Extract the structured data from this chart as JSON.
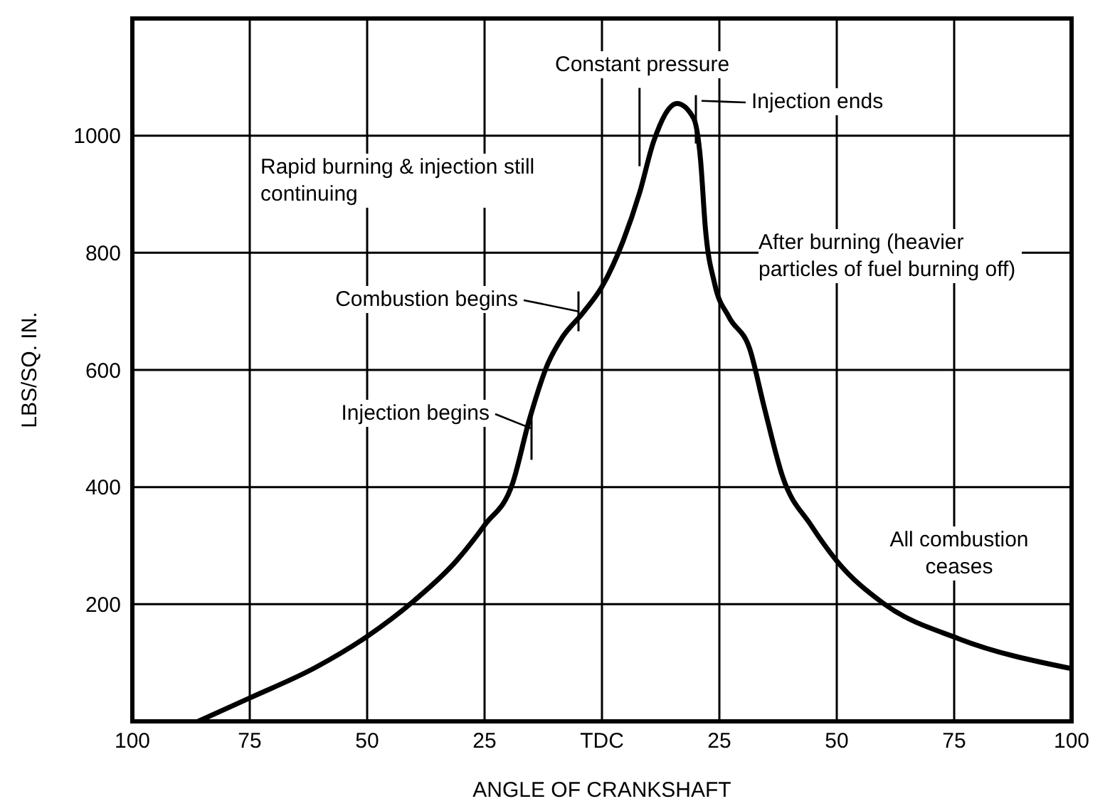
{
  "chart_data": {
    "type": "line",
    "xlabel": "ANGLE OF CRANKSHAFT",
    "ylabel": "LBS/SQ. IN.",
    "x": [
      -86,
      -75,
      -61,
      -50,
      -40,
      -31,
      -25,
      -19,
      -15.5,
      -11.5,
      -8.5,
      -4,
      0,
      4.5,
      8,
      11,
      16,
      19.5,
      21,
      22,
      24,
      27,
      31.5,
      34.5,
      38.5,
      44.5,
      50,
      60,
      76,
      100
    ],
    "series": [
      {
        "color": "#000000",
        "values": [
          0,
          40,
          92,
          145,
          206,
          274,
          335,
          407,
          514,
          611,
          655,
          698,
          742,
          820,
          902,
          990,
          1055,
          1030,
          958,
          844,
          747,
          691,
          635,
          538,
          417,
          335,
          274,
          201,
          141,
          90
        ]
      }
    ],
    "xlim": [
      -100,
      100
    ],
    "xticks": [
      {
        "value": -100,
        "label": "100"
      },
      {
        "value": -75,
        "label": "75"
      },
      {
        "value": -50,
        "label": "50"
      },
      {
        "value": -25,
        "label": "25"
      },
      {
        "value": 0,
        "label": "TDC"
      },
      25,
      50,
      75,
      100
    ],
    "ylim": [
      0,
      1200
    ],
    "yticks": [
      {
        "value": 0,
        "label": null
      },
      200,
      400,
      600,
      800,
      1000
    ],
    "grid": true,
    "legend": false,
    "marker": "none",
    "line_style": "solid",
    "annotations": [
      {
        "text": "Constant pressure",
        "x": 8,
        "y": 960
      },
      {
        "text": "Injection ends",
        "x": 20,
        "y": 1040
      },
      "Rapid burning & injection still continuing",
      {
        "text": "Combustion begins",
        "x": -5,
        "y": 700
      },
      {
        "text": "Injection begins",
        "x": -15,
        "y": 500
      },
      "After burning (heavier particles of fuel burning off)",
      "All combustion ceases"
    ]
  }
}
